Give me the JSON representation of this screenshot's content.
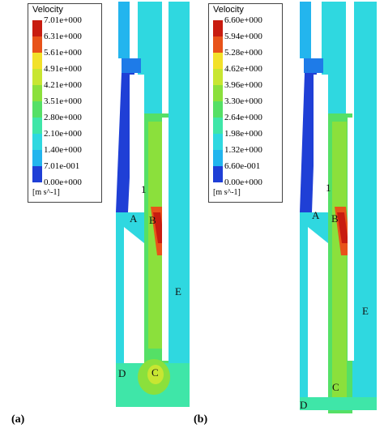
{
  "panels": [
    {
      "caption": "(a)",
      "legend": {
        "title": "Velocity",
        "ticks": [
          "7.01e+000",
          "6.31e+000",
          "5.61e+000",
          "4.91e+000",
          "4.21e+000",
          "3.51e+000",
          "2.80e+000",
          "2.10e+000",
          "1.40e+000",
          "7.01e-001",
          "0.00e+000"
        ],
        "unit": "[m s^-1]"
      },
      "points": [
        "1",
        "A",
        "B",
        "C",
        "D",
        "E"
      ]
    },
    {
      "caption": "(b)",
      "legend": {
        "title": "Velocity",
        "ticks": [
          "6.60e+000",
          "5.94e+000",
          "5.28e+000",
          "4.62e+000",
          "3.96e+000",
          "3.30e+000",
          "2.64e+000",
          "1.98e+000",
          "1.32e+000",
          "6.60e-001",
          "0.00e+000"
        ],
        "unit": "[m s^-1]"
      },
      "points": [
        "1",
        "A",
        "B",
        "C",
        "D",
        "E"
      ]
    }
  ],
  "colors": {
    "colormap": [
      "#1f3fd6",
      "#1e7be8",
      "#23b5ee",
      "#2fd8e0",
      "#3fe6a8",
      "#55e066",
      "#8be03c",
      "#c8e632",
      "#f2e12a",
      "#f5a623",
      "#e8531a",
      "#c81c10"
    ]
  }
}
